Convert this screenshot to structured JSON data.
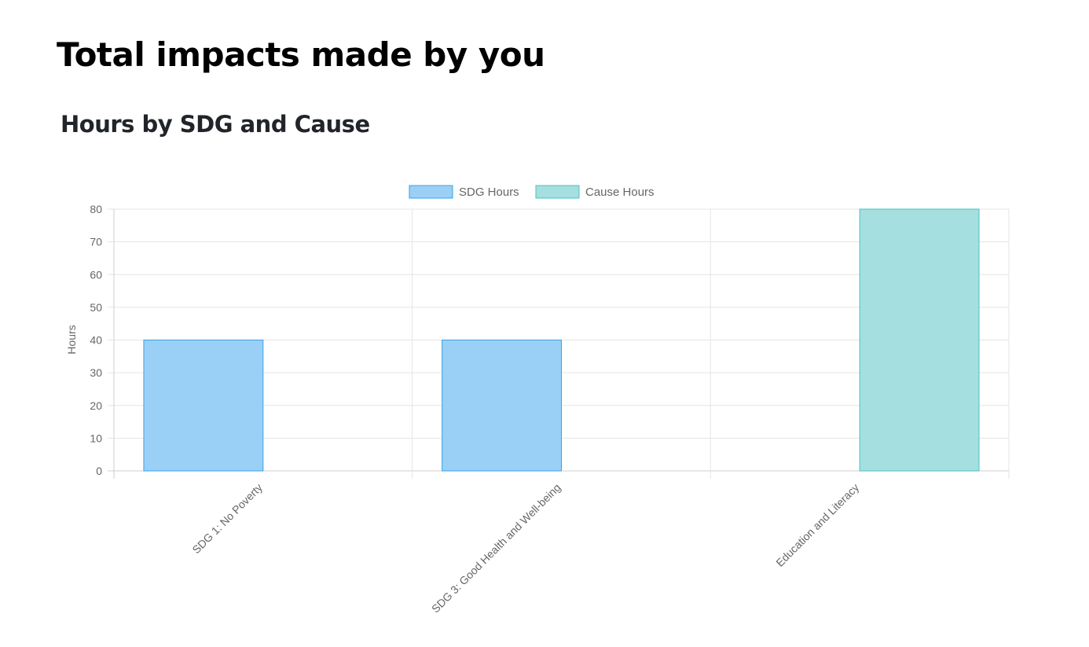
{
  "page": {
    "title": "Total impacts made by you"
  },
  "chart_data": {
    "type": "bar",
    "title": "Hours by SDG and Cause",
    "xlabel": "",
    "ylabel": "Hours",
    "ylim": [
      0,
      80
    ],
    "yticks": [
      0,
      10,
      20,
      30,
      40,
      50,
      60,
      70,
      80
    ],
    "categories": [
      "SDG 1: No Poverty",
      "SDG 3: Good Health and Well-being",
      "Education and Literacy"
    ],
    "series": [
      {
        "name": "SDG Hours",
        "values": [
          40,
          40,
          0
        ],
        "color": "#9ad0f5",
        "border": "#36a2eb"
      },
      {
        "name": "Cause Hours",
        "values": [
          0,
          0,
          80
        ],
        "color": "#a5dfdf",
        "border": "#4bc0c0"
      }
    ],
    "legend": "top-center",
    "grid": true
  }
}
